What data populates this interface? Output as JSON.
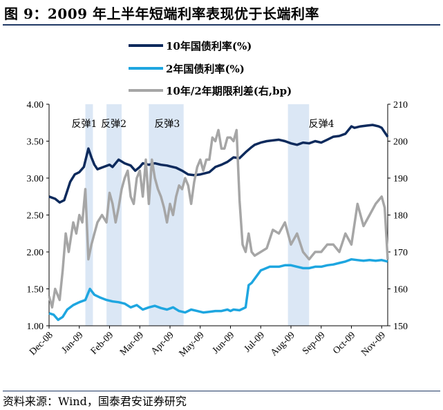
{
  "title": "图 9：2009 年上半年短端利率表现优于长端利率",
  "source": "资料来源：Wind，国泰君安证券研究",
  "chart_data": {
    "type": "line",
    "x_categories": [
      "Dec-08",
      "Jan-09",
      "Feb-09",
      "Mar-09",
      "Apr-09",
      "May-09",
      "Jun-09",
      "Jul-09",
      "Aug-09",
      "Sep-09",
      "Oct-09",
      "Nov-09"
    ],
    "ylim_left": [
      1.0,
      4.0
    ],
    "yticks_left": [
      "1.00",
      "1.50",
      "2.00",
      "2.50",
      "3.00",
      "3.50",
      "4.00"
    ],
    "ylim_right": [
      150,
      210
    ],
    "yticks_right": [
      "150",
      "160",
      "170",
      "180",
      "190",
      "200",
      "210"
    ],
    "legend_position": "top-center",
    "grid": false,
    "shaded_periods": [
      {
        "label": "反弹1",
        "start": 1.2,
        "end": 1.45
      },
      {
        "label": "反弹2",
        "start": 1.9,
        "end": 2.4
      },
      {
        "label": "反弹3",
        "start": 3.3,
        "end": 4.45
      },
      {
        "label": "反弹4",
        "start": 7.9,
        "end": 8.6
      }
    ],
    "series": [
      {
        "name": "10年国债利率(%)",
        "axis": "left",
        "color": "#0d2a5c",
        "x": [
          0,
          0.2,
          0.35,
          0.5,
          0.7,
          0.85,
          1.0,
          1.15,
          1.3,
          1.4,
          1.5,
          1.6,
          1.8,
          2.0,
          2.1,
          2.3,
          2.5,
          2.7,
          2.85,
          3.0,
          3.1,
          3.3,
          3.5,
          3.7,
          3.9,
          4.0,
          4.2,
          4.4,
          4.6,
          4.8,
          5.0,
          5.3,
          5.5,
          5.7,
          5.9,
          6.0,
          6.1,
          6.3,
          6.5,
          6.7,
          6.8,
          7.0,
          7.2,
          7.4,
          7.6,
          7.8,
          8.0,
          8.2,
          8.4,
          8.6,
          8.8,
          9.0,
          9.2,
          9.4,
          9.6,
          9.8,
          10.0,
          10.1,
          10.3,
          10.5,
          10.7,
          10.9,
          11.0,
          11.1,
          11.2
        ],
        "y": [
          2.75,
          2.72,
          2.67,
          2.7,
          2.95,
          3.05,
          3.08,
          3.15,
          3.4,
          3.28,
          3.18,
          3.12,
          3.15,
          3.18,
          3.15,
          3.25,
          3.2,
          3.17,
          3.1,
          3.15,
          3.2,
          3.18,
          3.2,
          3.18,
          3.17,
          3.16,
          3.14,
          3.1,
          3.05,
          3.04,
          3.05,
          3.08,
          3.15,
          3.18,
          3.22,
          3.25,
          3.28,
          3.27,
          3.35,
          3.42,
          3.45,
          3.48,
          3.5,
          3.51,
          3.52,
          3.5,
          3.47,
          3.45,
          3.48,
          3.47,
          3.5,
          3.48,
          3.52,
          3.56,
          3.57,
          3.6,
          3.7,
          3.68,
          3.7,
          3.71,
          3.72,
          3.7,
          3.68,
          3.62,
          3.56
        ]
      },
      {
        "name": "2年国债利率(%)",
        "axis": "left",
        "color": "#1ea6e0",
        "x": [
          0,
          0.15,
          0.3,
          0.45,
          0.6,
          0.8,
          1.0,
          1.2,
          1.35,
          1.5,
          1.7,
          1.9,
          2.1,
          2.3,
          2.5,
          2.7,
          2.9,
          3.1,
          3.3,
          3.5,
          3.7,
          3.9,
          4.1,
          4.3,
          4.5,
          4.7,
          4.9,
          5.1,
          5.3,
          5.5,
          5.7,
          5.9,
          6.0,
          6.1,
          6.3,
          6.5,
          6.6,
          6.7,
          7.0,
          7.3,
          7.6,
          7.8,
          8.0,
          8.2,
          8.4,
          8.6,
          8.8,
          9.0,
          9.2,
          9.4,
          9.6,
          9.8,
          10.0,
          10.2,
          10.4,
          10.6,
          10.8,
          11.0,
          11.2
        ],
        "y": [
          1.17,
          1.15,
          1.08,
          1.12,
          1.22,
          1.28,
          1.32,
          1.35,
          1.5,
          1.42,
          1.38,
          1.35,
          1.33,
          1.32,
          1.3,
          1.25,
          1.28,
          1.22,
          1.25,
          1.27,
          1.24,
          1.22,
          1.25,
          1.2,
          1.18,
          1.22,
          1.2,
          1.18,
          1.19,
          1.2,
          1.2,
          1.22,
          1.2,
          1.22,
          1.21,
          1.25,
          1.55,
          1.58,
          1.75,
          1.8,
          1.8,
          1.82,
          1.82,
          1.8,
          1.78,
          1.78,
          1.8,
          1.8,
          1.82,
          1.83,
          1.85,
          1.87,
          1.9,
          1.89,
          1.88,
          1.89,
          1.88,
          1.89,
          1.87
        ]
      },
      {
        "name": "10年/2年期限利差(右,bp)",
        "axis": "right",
        "color": "#a6a6a6",
        "x": [
          0,
          0.1,
          0.2,
          0.35,
          0.45,
          0.55,
          0.65,
          0.8,
          0.9,
          1.0,
          1.1,
          1.2,
          1.3,
          1.4,
          1.5,
          1.6,
          1.75,
          1.9,
          2.0,
          2.1,
          2.2,
          2.3,
          2.4,
          2.5,
          2.6,
          2.7,
          2.8,
          2.9,
          3.0,
          3.1,
          3.2,
          3.3,
          3.4,
          3.5,
          3.6,
          3.7,
          3.8,
          3.9,
          4.0,
          4.1,
          4.2,
          4.3,
          4.4,
          4.5,
          4.6,
          4.7,
          4.8,
          4.9,
          5.0,
          5.1,
          5.2,
          5.3,
          5.4,
          5.5,
          5.6,
          5.7,
          5.8,
          5.9,
          6.0,
          6.1,
          6.2,
          6.3,
          6.4,
          6.5,
          6.6,
          6.7,
          6.8,
          7.0,
          7.2,
          7.4,
          7.6,
          7.8,
          8.0,
          8.2,
          8.4,
          8.6,
          8.8,
          9.0,
          9.2,
          9.4,
          9.6,
          9.8,
          10.0,
          10.2,
          10.4,
          10.6,
          10.8,
          11.0,
          11.1,
          11.2
        ],
        "y": [
          158,
          155,
          160,
          157,
          165,
          175,
          170,
          178,
          175,
          180,
          178,
          187,
          168,
          172,
          175,
          178,
          180,
          178,
          186,
          183,
          178,
          182,
          187,
          190,
          192,
          185,
          183,
          190,
          192,
          185,
          195,
          183,
          195,
          190,
          187,
          185,
          182,
          178,
          183,
          180,
          185,
          188,
          187,
          190,
          188,
          183,
          189,
          193,
          195,
          192,
          195,
          195,
          201,
          200,
          203,
          198,
          198,
          201,
          201,
          200,
          203,
          184,
          172,
          170,
          175,
          170,
          169,
          170,
          171,
          176,
          175,
          178,
          172,
          175,
          170,
          168,
          170,
          170,
          172,
          172,
          170,
          175,
          172,
          183,
          177,
          180,
          183,
          185,
          182,
          168
        ]
      }
    ]
  }
}
